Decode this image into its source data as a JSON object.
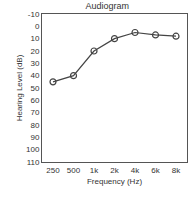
{
  "chart_data": {
    "type": "line",
    "title": "Audiogram",
    "x_label": "Frequency (Hz)",
    "y_label": "Hearing Level (dB)",
    "categories": [
      "250",
      "500",
      "1k",
      "2k",
      "4k",
      "6k",
      "8k"
    ],
    "values": [
      45,
      40,
      20,
      10,
      5,
      7,
      8
    ],
    "color": "#444444",
    "marker": "circle-open",
    "line_style": "solid",
    "ylim": [
      110,
      -10
    ],
    "yticks": [
      -10,
      0,
      10,
      20,
      30,
      40,
      50,
      60,
      70,
      80,
      90,
      100,
      110
    ],
    "grid": false
  }
}
